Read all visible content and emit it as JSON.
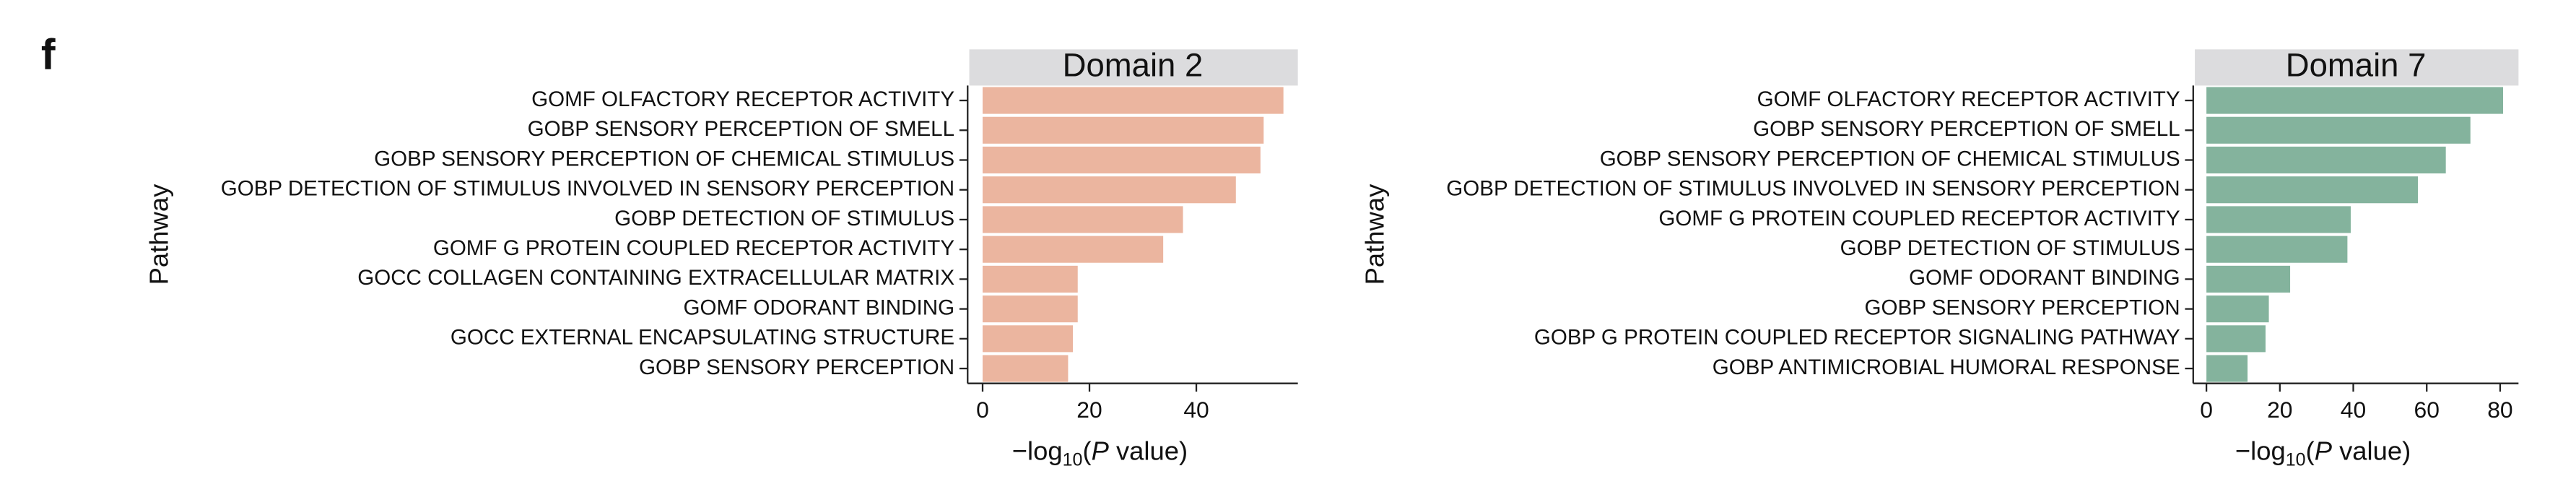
{
  "panel_label": "f",
  "chart_data": [
    {
      "type": "bar",
      "orientation": "horizontal",
      "title": "Domain 2",
      "ylabel": "Pathway",
      "xlabel": [
        "−log",
        "10",
        "(",
        "P",
        " value)"
      ],
      "categories": [
        "GOMF OLFACTORY RECEPTOR ACTIVITY",
        "GOBP SENSORY PERCEPTION OF SMELL",
        "GOBP SENSORY PERCEPTION OF CHEMICAL STIMULUS",
        "GOBP DETECTION OF STIMULUS INVOLVED IN SENSORY PERCEPTION",
        "GOBP DETECTION OF STIMULUS",
        "GOMF G PROTEIN COUPLED RECEPTOR ACTIVITY",
        "GOCC COLLAGEN CONTAINING EXTRACELLULAR MATRIX",
        "GOMF ODORANT BINDING",
        "GOCC EXTERNAL ENCAPSULATING STRUCTURE",
        "GOBP SENSORY PERCEPTION"
      ],
      "values": [
        56.3,
        52.6,
        52,
        47.4,
        37.5,
        33.8,
        17.8,
        17.8,
        16.9,
        16
      ],
      "color": "#ebb59f",
      "xlim": [
        -2.8,
        59
      ],
      "xticks": [
        0,
        20,
        40
      ]
    },
    {
      "type": "bar",
      "orientation": "horizontal",
      "title": "Domain 7",
      "ylabel": "Pathway",
      "xlabel": [
        "−log",
        "10",
        "(",
        "P",
        " value)"
      ],
      "categories": [
        "GOMF OLFACTORY RECEPTOR ACTIVITY",
        "GOBP SENSORY PERCEPTION OF SMELL",
        "GOBP SENSORY PERCEPTION OF CHEMICAL STIMULUS",
        "GOBP DETECTION OF STIMULUS INVOLVED IN SENSORY PERCEPTION",
        "GOMF G PROTEIN COUPLED RECEPTOR ACTIVITY",
        "GOBP DETECTION OF STIMULUS",
        "GOMF ODORANT BINDING",
        "GOBP SENSORY PERCEPTION",
        "GOBP G PROTEIN COUPLED RECEPTOR SIGNALING PATHWAY",
        "GOBP ANTIMICROBIAL HUMORAL RESPONSE"
      ],
      "values": [
        80.8,
        71.9,
        65.2,
        57.6,
        39.3,
        38.4,
        22.8,
        17,
        16.1,
        11.2
      ],
      "color": "#84b39d",
      "xlim": [
        -3.6,
        85
      ],
      "xticks": [
        0,
        20,
        40,
        60,
        80
      ]
    }
  ]
}
